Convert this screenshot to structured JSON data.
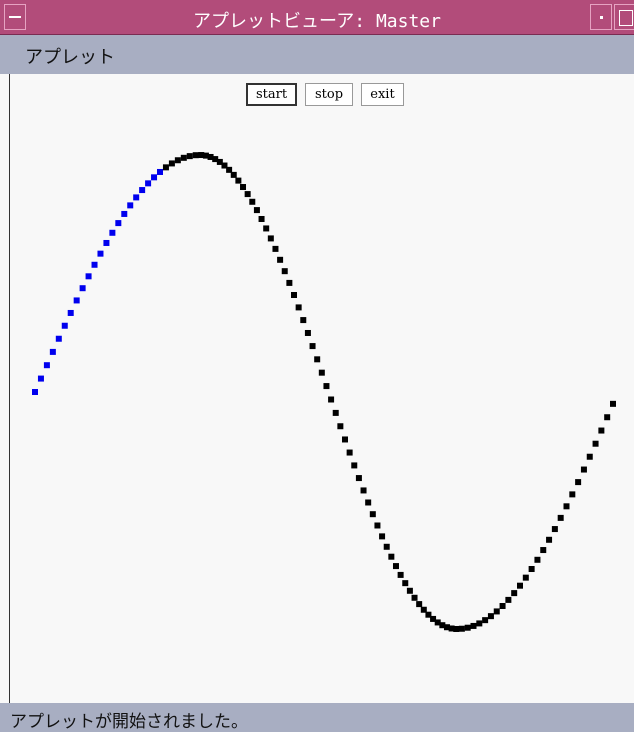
{
  "window": {
    "title": "アプレットビューア: Master",
    "menu": "アプレット",
    "buttons": [
      "start",
      "stop",
      "exit"
    ],
    "status": "アプレットが開始されました。"
  }
}
